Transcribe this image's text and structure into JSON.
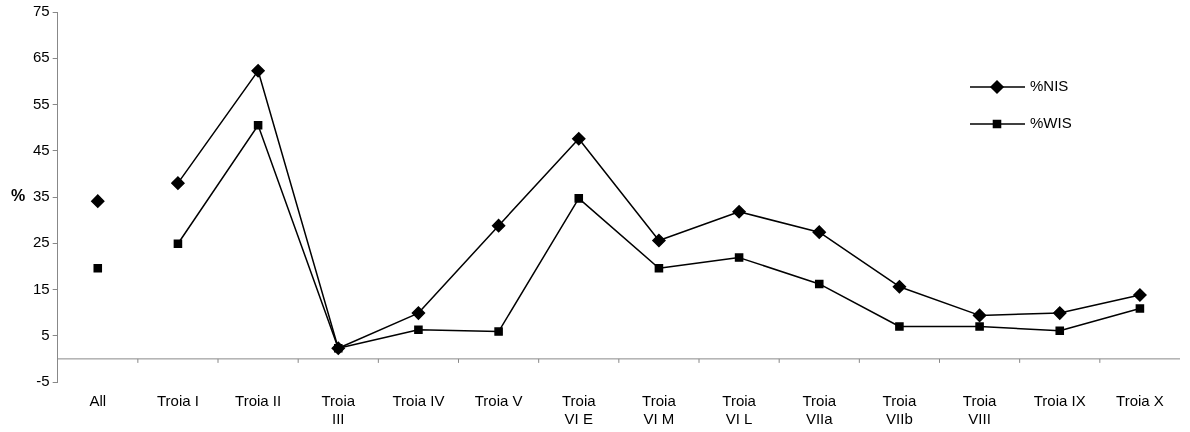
{
  "chart_data": {
    "type": "line",
    "ylabel": "%",
    "categories": [
      "All",
      "Troia I",
      "Troia II",
      "Troia III",
      "Troia IV",
      "Troia V",
      "Troia VI E",
      "Troia VI M",
      "Troia VI L",
      "Troia VIIa",
      "Troia VIIb",
      "Troia VIII",
      "Troia IX",
      "Troia X"
    ],
    "series": [
      {
        "name": "%NIS",
        "color": "#000000",
        "marker": "diamond",
        "values": [
          null,
          38.0,
          62.3,
          2.3,
          9.9,
          28.8,
          47.6,
          25.6,
          31.8,
          27.4,
          15.6,
          9.4,
          9.9,
          13.8
        ]
      },
      {
        "name": "%WIS",
        "color": "#000000",
        "marker": "square",
        "values": [
          null,
          24.9,
          50.5,
          2.3,
          6.3,
          5.9,
          34.7,
          19.6,
          21.9,
          16.2,
          7.0,
          7.0,
          6.1,
          10.9
        ]
      },
      {
        "type": "scatter",
        "color": "#000000",
        "marker": "diamond",
        "x": [
          "All"
        ],
        "values": [
          34.1
        ]
      },
      {
        "type": "scatter",
        "color": "#000000",
        "marker": "square",
        "x": [
          "All"
        ],
        "values": [
          19.6
        ]
      }
    ],
    "ylim": [
      -5,
      75
    ],
    "yticks": [
      -5,
      5,
      15,
      25,
      35,
      45,
      55,
      65,
      75
    ],
    "grid": false,
    "legend": "top right",
    "line_style": "solid"
  }
}
